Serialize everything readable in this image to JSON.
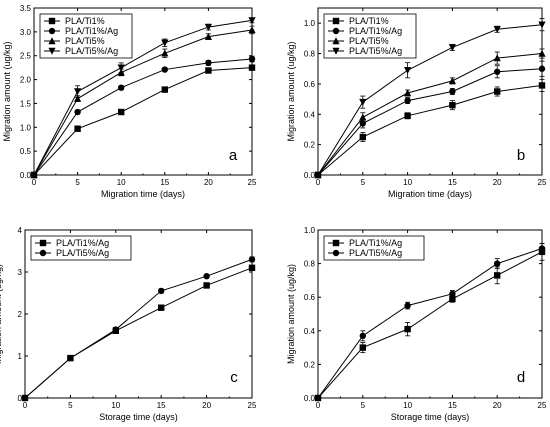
{
  "chart_data": [
    {
      "panel": "a",
      "type": "line",
      "xlabel": "Migration time (days)",
      "ylabel": "Migration amount (ug/kg)",
      "xlim": [
        0,
        25
      ],
      "ylim": [
        0,
        3.5
      ],
      "xticks": [
        "0",
        "5",
        "10",
        "15",
        "20",
        "25"
      ],
      "yticks": [
        "0.0",
        "0.5",
        "1.0",
        "1.5",
        "2.0",
        "2.5",
        "3.0",
        "3.5"
      ],
      "legend_position": "top-left",
      "x": [
        0,
        5,
        10,
        15,
        20,
        25
      ],
      "series": [
        {
          "name": "PLA/Ti1%",
          "marker": "square",
          "values": [
            0,
            0.97,
            1.32,
            1.79,
            2.19,
            2.25
          ],
          "errors": [
            0,
            0.03,
            0.05,
            0.04,
            0.05,
            0.05
          ]
        },
        {
          "name": "PLA/Ti1%/Ag",
          "marker": "circle",
          "values": [
            0,
            1.32,
            1.83,
            2.21,
            2.35,
            2.43
          ],
          "errors": [
            0,
            0.04,
            0.04,
            0.03,
            0.05,
            0.06
          ]
        },
        {
          "name": "PLA/Ti5%",
          "marker": "triangle-up",
          "values": [
            0,
            1.6,
            2.15,
            2.55,
            2.9,
            3.04
          ],
          "errors": [
            0,
            0.06,
            0.07,
            0.09,
            0.06,
            0.08
          ]
        },
        {
          "name": "PLA/Ti5%/Ag",
          "marker": "triangle-down",
          "values": [
            0,
            1.75,
            2.25,
            2.77,
            3.1,
            3.24
          ],
          "errors": [
            0,
            0.12,
            0.1,
            0.08,
            0.06,
            0.05
          ]
        }
      ]
    },
    {
      "panel": "b",
      "type": "line",
      "xlabel": "Migration time (days)",
      "ylabel": "Migration amount (ug/kg)",
      "xlim": [
        0,
        25
      ],
      "ylim": [
        0,
        1.1
      ],
      "xticks": [
        "0",
        "5",
        "10",
        "15",
        "20",
        "25"
      ],
      "yticks": [
        "0.0",
        "0.2",
        "0.4",
        "0.6",
        "0.8",
        "1.0"
      ],
      "legend_position": "top-left",
      "x": [
        0,
        5,
        10,
        15,
        20,
        25
      ],
      "series": [
        {
          "name": "PLA/Ti1%",
          "marker": "square",
          "values": [
            0,
            0.25,
            0.39,
            0.46,
            0.55,
            0.59
          ],
          "errors": [
            0,
            0.03,
            0.02,
            0.03,
            0.03,
            0.04
          ]
        },
        {
          "name": "PLA/Ti1%/Ag",
          "marker": "circle",
          "values": [
            0,
            0.34,
            0.49,
            0.55,
            0.68,
            0.7
          ],
          "errors": [
            0,
            0.03,
            0.02,
            0.02,
            0.04,
            0.05
          ]
        },
        {
          "name": "PLA/Ti5%",
          "marker": "triangle-up",
          "values": [
            0,
            0.38,
            0.54,
            0.62,
            0.77,
            0.8
          ],
          "errors": [
            0,
            0.03,
            0.02,
            0.02,
            0.04,
            0.03
          ]
        },
        {
          "name": "PLA/Ti5%/Ag",
          "marker": "triangle-down",
          "values": [
            0,
            0.48,
            0.69,
            0.84,
            0.96,
            0.99
          ],
          "errors": [
            0,
            0.04,
            0.05,
            0.02,
            0.02,
            0.04
          ]
        }
      ]
    },
    {
      "panel": "c",
      "type": "line",
      "xlabel": "Storage time (days)",
      "ylabel": "Migration amount (ug/kg)",
      "xlim": [
        0,
        25
      ],
      "ylim": [
        0,
        4
      ],
      "xticks": [
        "0",
        "5",
        "10",
        "15",
        "20",
        "25"
      ],
      "yticks": [
        "0",
        "1",
        "2",
        "3",
        "4"
      ],
      "legend_position": "top-left",
      "x": [
        0,
        5,
        10,
        15,
        20,
        25
      ],
      "series": [
        {
          "name": "PLA/Ti1%/Ag",
          "marker": "square",
          "values": [
            0,
            0.95,
            1.6,
            2.15,
            2.68,
            3.1
          ],
          "errors": [
            0,
            0.02,
            0.04,
            0.03,
            0.04,
            0.05
          ]
        },
        {
          "name": "PLA/Ti5%/Ag",
          "marker": "circle",
          "values": [
            0,
            0.95,
            1.63,
            2.55,
            2.9,
            3.3
          ],
          "errors": [
            0,
            0.02,
            0.05,
            0.05,
            0.03,
            0.06
          ]
        }
      ]
    },
    {
      "panel": "d",
      "type": "line",
      "xlabel": "Storage time (days)",
      "ylabel": "Migration amount (ug/kg)",
      "xlim": [
        0,
        25
      ],
      "ylim": [
        0,
        1.0
      ],
      "xticks": [
        "0",
        "5",
        "10",
        "15",
        "20",
        "25"
      ],
      "yticks": [
        "0.0",
        "0.2",
        "0.4",
        "0.6",
        "0.8",
        "1.0"
      ],
      "legend_position": "top-left",
      "x": [
        0,
        5,
        10,
        15,
        20,
        25
      ],
      "series": [
        {
          "name": "PLA/Ti1%/Ag",
          "marker": "square",
          "values": [
            0,
            0.3,
            0.41,
            0.59,
            0.73,
            0.87
          ],
          "errors": [
            0,
            0.03,
            0.04,
            0.02,
            0.05,
            0.05
          ]
        },
        {
          "name": "PLA/Ti5%/Ag",
          "marker": "circle",
          "values": [
            0,
            0.37,
            0.55,
            0.62,
            0.8,
            0.89
          ],
          "errors": [
            0,
            0.03,
            0.02,
            0.02,
            0.03,
            0.03
          ]
        }
      ]
    }
  ]
}
